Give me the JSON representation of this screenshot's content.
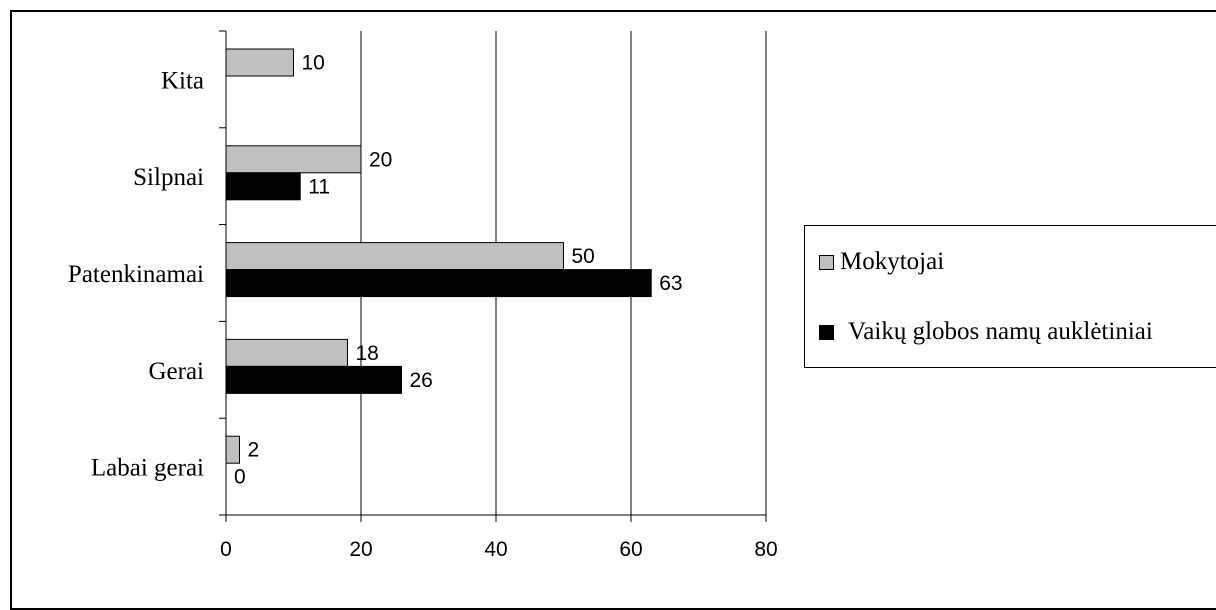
{
  "chart_data": {
    "type": "bar",
    "orientation": "horizontal",
    "categories": [
      "Labai gerai",
      "Gerai",
      "Patenkinamai",
      "Silpnai",
      "Kita"
    ],
    "series": [
      {
        "name": "Mokytojai",
        "color": "#c0c0c0",
        "values": [
          2,
          18,
          50,
          20,
          10
        ],
        "labels": [
          "2",
          "18",
          "50",
          "20",
          "10"
        ]
      },
      {
        "name": "Vaikų globos namų auklėtiniai",
        "color": "#000000",
        "values": [
          0,
          26,
          63,
          11,
          null
        ],
        "labels": [
          "0",
          "26",
          "63",
          "11",
          ""
        ]
      }
    ],
    "xlim": [
      0,
      80
    ],
    "xticks": [
      "0",
      "20",
      "40",
      "60",
      "80"
    ],
    "grid": "vertical",
    "legend_position": "right",
    "title": "",
    "xlabel": "",
    "ylabel": ""
  }
}
